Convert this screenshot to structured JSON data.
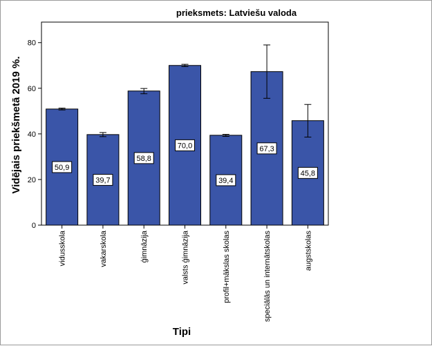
{
  "chart_data": {
    "type": "bar",
    "title": "prieksmets: Latviešu valoda",
    "xlabel": "Tipi",
    "ylabel": "Vidējais priekšmetā 2019 %.",
    "ylim": [
      0,
      89
    ],
    "yticks": [
      0,
      20,
      40,
      60,
      80
    ],
    "grid": false,
    "bar_color": "#3a55a8",
    "categories": [
      "vidusskola",
      "vakarskola",
      "ģimnāzija",
      "valsts ģimnāzija",
      "profil+mākslas skolas",
      "speciālās un internātskolas",
      "augstskolas"
    ],
    "values": [
      50.9,
      39.7,
      58.8,
      70.0,
      39.4,
      67.3,
      45.8
    ],
    "data_labels": [
      "50,9",
      "39,7",
      "58,8",
      "70,0",
      "39,4",
      "67,3",
      "45,8"
    ],
    "error_low": [
      50.5,
      38.8,
      57.6,
      69.5,
      38.9,
      55.6,
      38.6
    ],
    "error_high": [
      51.3,
      40.6,
      59.9,
      70.5,
      39.8,
      79.0,
      52.9
    ]
  }
}
